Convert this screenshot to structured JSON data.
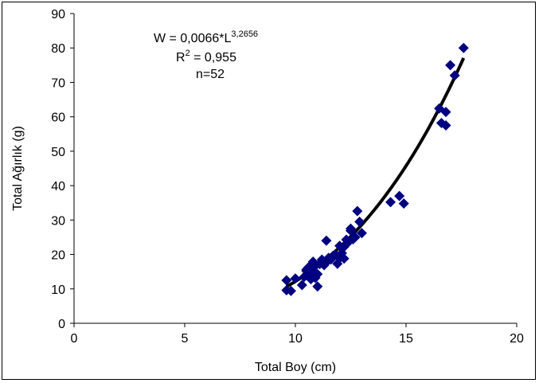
{
  "chart_data": {
    "type": "scatter",
    "title": "",
    "xlabel": "Total Boy (cm)",
    "ylabel": "Total Ağırlık (g)",
    "xlim": [
      0,
      20
    ],
    "ylim": [
      0,
      90
    ],
    "x_ticks": [
      0,
      5,
      10,
      15,
      20
    ],
    "y_ticks": [
      0,
      10,
      20,
      30,
      40,
      50,
      60,
      70,
      80,
      90
    ],
    "grid": false,
    "legend": "none",
    "annotation": {
      "eq_base": "W = 0,0066*L",
      "eq_exp": "3,2656",
      "r2_base": "R",
      "r2_exp": "2",
      "r2_rest": " = 0,955",
      "n": "n=52"
    },
    "fit": {
      "type": "power",
      "a": 0.0066,
      "b": 3.2656,
      "x_range": [
        9.6,
        17.6
      ]
    },
    "marker_color": "#000080",
    "fit_color": "#000000",
    "points": [
      [
        9.6,
        12.5
      ],
      [
        9.6,
        9.6
      ],
      [
        9.8,
        9.4
      ],
      [
        10.0,
        13.0
      ],
      [
        10.3,
        11.1
      ],
      [
        10.4,
        13.5
      ],
      [
        10.5,
        15.2
      ],
      [
        10.6,
        14.7
      ],
      [
        10.6,
        16.3
      ],
      [
        10.7,
        12.8
      ],
      [
        10.7,
        16.1
      ],
      [
        10.8,
        17.9
      ],
      [
        10.8,
        15.0
      ],
      [
        10.9,
        13.2
      ],
      [
        10.9,
        16.7
      ],
      [
        11.0,
        10.7
      ],
      [
        11.0,
        14.3
      ],
      [
        11.1,
        17.2
      ],
      [
        11.2,
        18.5
      ],
      [
        11.3,
        16.9
      ],
      [
        11.4,
        24.0
      ],
      [
        11.4,
        17.8
      ],
      [
        11.5,
        19.0
      ],
      [
        11.6,
        18.5
      ],
      [
        11.7,
        19.6
      ],
      [
        11.8,
        20.0
      ],
      [
        11.9,
        17.3
      ],
      [
        12.0,
        22.5
      ],
      [
        12.0,
        18.9
      ],
      [
        12.1,
        20.4
      ],
      [
        12.2,
        18.8
      ],
      [
        12.2,
        22.2
      ],
      [
        12.3,
        24.3
      ],
      [
        12.4,
        23.6
      ],
      [
        12.5,
        27.5
      ],
      [
        12.6,
        24.4
      ],
      [
        12.7,
        25.0
      ],
      [
        12.8,
        32.6
      ],
      [
        12.9,
        29.5
      ],
      [
        13.0,
        26.2
      ],
      [
        14.3,
        35.2
      ],
      [
        14.7,
        37.0
      ],
      [
        14.9,
        34.8
      ],
      [
        16.5,
        62.4
      ],
      [
        16.6,
        58.2
      ],
      [
        16.8,
        61.4
      ],
      [
        16.8,
        57.5
      ],
      [
        17.0,
        75.0
      ],
      [
        17.2,
        72.0
      ],
      [
        17.6,
        80.0
      ],
      [
        10.5,
        15.6
      ],
      [
        12.5,
        26.9
      ]
    ]
  }
}
